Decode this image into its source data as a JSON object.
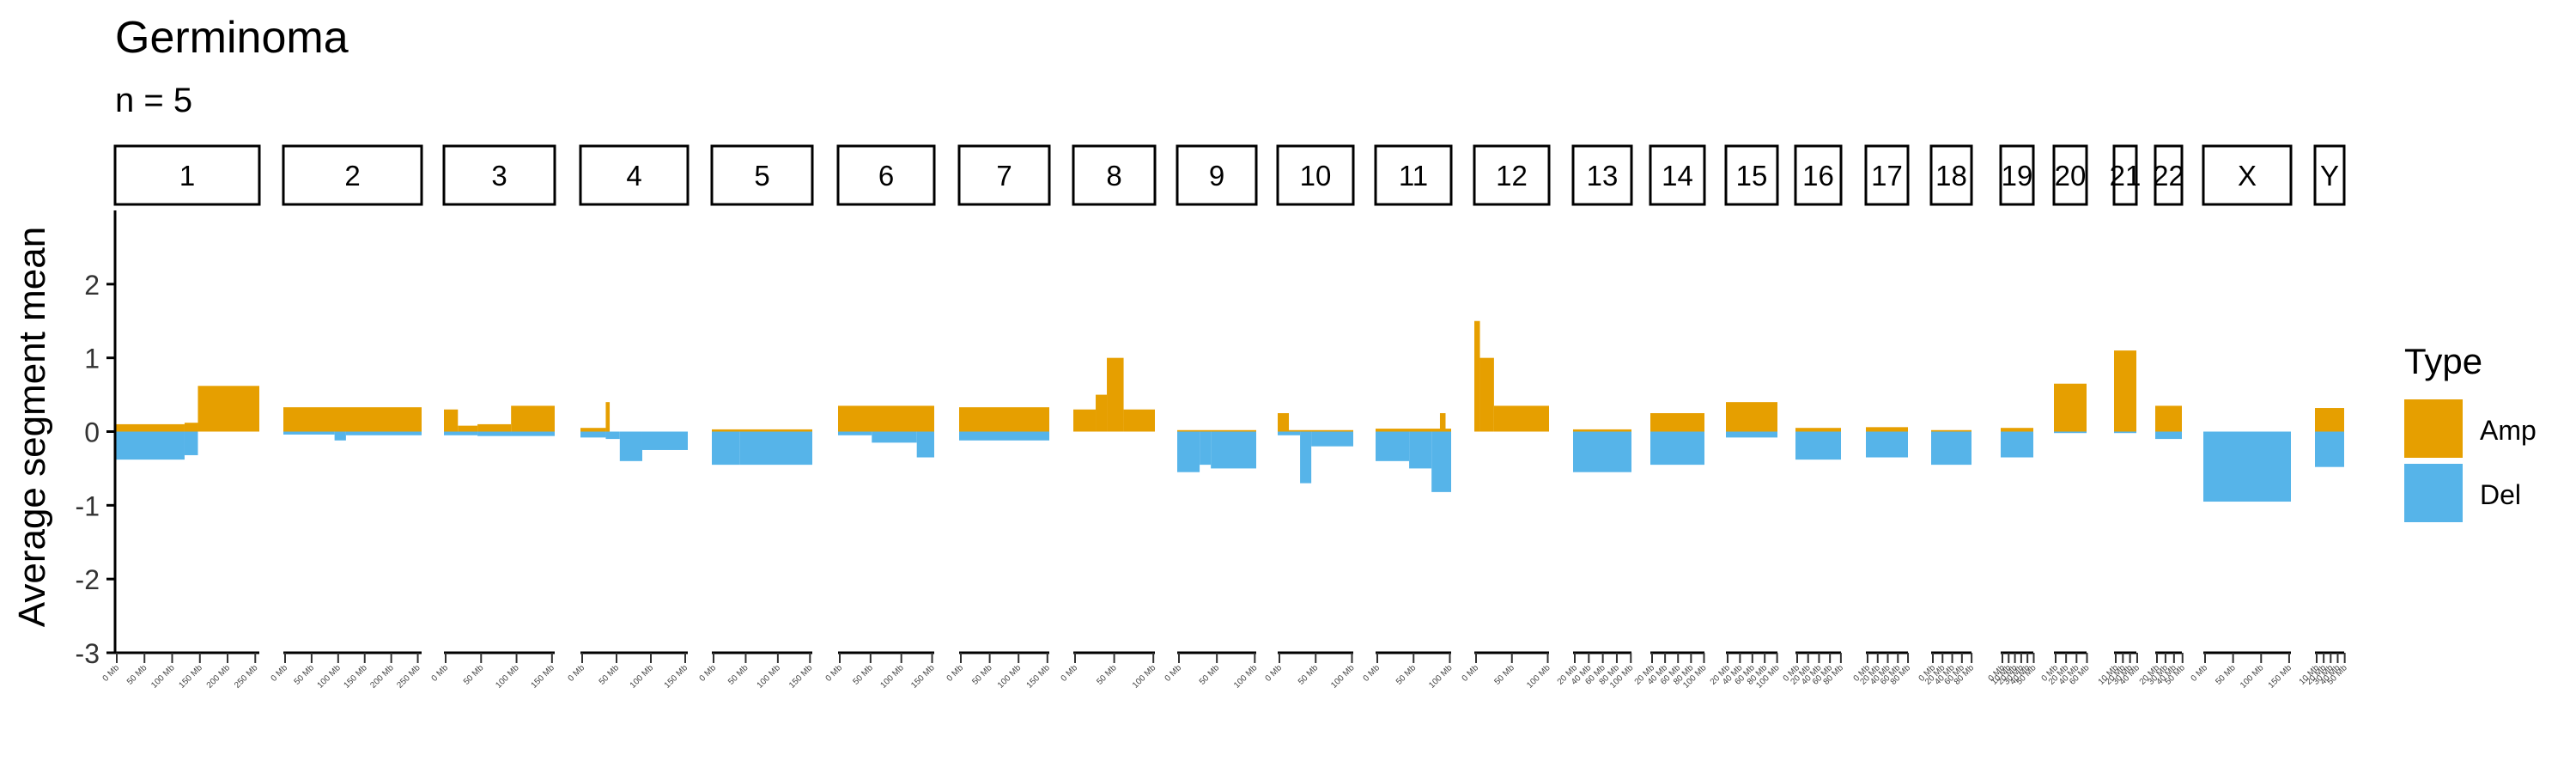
{
  "title": "Germinoma",
  "subtitle": "n = 5",
  "colors": {
    "amp": "#E69F00",
    "del": "#56B4E9"
  },
  "legend": {
    "title": "Type",
    "items": [
      {
        "label": "Amp",
        "color": "#E69F00"
      },
      {
        "label": "Del",
        "color": "#56B4E9"
      }
    ]
  },
  "chart_data": {
    "type": "area",
    "title": "Germinoma",
    "subtitle": "n = 5",
    "ylabel": "Average segment mean",
    "xlabel": "",
    "ylim": [
      -3,
      3
    ],
    "yticks": [
      2,
      1,
      0,
      -1,
      -2,
      -3
    ],
    "xtick_unit": "Mb",
    "grid": false,
    "legend_position": "right",
    "panels": [
      {
        "name": "1",
        "length_mb": 249,
        "ticks": [
          "0 Mb",
          "50 Mb",
          "100 Mb",
          "150 Mb",
          "200 Mb",
          "250 Mb"
        ],
        "amp": [
          [
            0,
            120,
            0.1
          ],
          [
            120,
            143,
            0.12
          ],
          [
            143,
            249,
            0.62
          ]
        ],
        "del": [
          [
            0,
            120,
            -0.38
          ],
          [
            120,
            143,
            -0.32
          ],
          [
            143,
            249,
            0
          ]
        ]
      },
      {
        "name": "2",
        "length_mb": 243,
        "ticks": [
          "0 Mb",
          "50 Mb",
          "100 Mb",
          "150 Mb",
          "200 Mb",
          "250 Mb"
        ],
        "amp": [
          [
            0,
            243,
            0.33
          ]
        ],
        "del": [
          [
            0,
            90,
            -0.04
          ],
          [
            90,
            110,
            -0.12
          ],
          [
            110,
            243,
            -0.05
          ]
        ]
      },
      {
        "name": "3",
        "length_mb": 198,
        "ticks": [
          "0 Mb",
          "50 Mb",
          "100 Mb",
          "150 Mb"
        ],
        "amp": [
          [
            0,
            25,
            0.3
          ],
          [
            25,
            60,
            0.08
          ],
          [
            60,
            120,
            0.1
          ],
          [
            120,
            198,
            0.35
          ]
        ],
        "del": [
          [
            0,
            60,
            -0.05
          ],
          [
            60,
            198,
            -0.06
          ]
        ]
      },
      {
        "name": "4",
        "length_mb": 191,
        "ticks": [
          "0 Mb",
          "50 Mb",
          "100 Mb",
          "150 Mb"
        ],
        "amp": [
          [
            0,
            45,
            0.05
          ],
          [
            45,
            52,
            0.4
          ],
          [
            52,
            191,
            0
          ]
        ],
        "del": [
          [
            0,
            45,
            -0.08
          ],
          [
            45,
            70,
            -0.1
          ],
          [
            70,
            110,
            -0.4
          ],
          [
            110,
            191,
            -0.25
          ]
        ]
      },
      {
        "name": "5",
        "length_mb": 181,
        "ticks": [
          "0 Mb",
          "50 Mb",
          "100 Mb",
          "150 Mb"
        ],
        "amp": [
          [
            0,
            181,
            0.03
          ]
        ],
        "del": [
          [
            0,
            50,
            -0.45
          ],
          [
            50,
            181,
            -0.45
          ]
        ]
      },
      {
        "name": "6",
        "length_mb": 171,
        "ticks": [
          "0 Mb",
          "50 Mb",
          "100 Mb",
          "150 Mb"
        ],
        "amp": [
          [
            0,
            171,
            0.35
          ]
        ],
        "del": [
          [
            0,
            60,
            -0.05
          ],
          [
            60,
            140,
            -0.15
          ],
          [
            140,
            171,
            -0.35
          ]
        ]
      },
      {
        "name": "7",
        "length_mb": 159,
        "ticks": [
          "0 Mb",
          "50 Mb",
          "100 Mb",
          "150 Mb"
        ],
        "amp": [
          [
            0,
            159,
            0.33
          ]
        ],
        "del": [
          [
            0,
            159,
            -0.12
          ]
        ]
      },
      {
        "name": "8",
        "length_mb": 146,
        "ticks": [
          "0 Mb",
          "50 Mb",
          "100 Mb"
        ],
        "amp": [
          [
            0,
            40,
            0.3
          ],
          [
            40,
            60,
            0.5
          ],
          [
            60,
            90,
            1.0
          ],
          [
            90,
            146,
            0.3
          ]
        ],
        "del": [
          [
            0,
            146,
            0
          ]
        ]
      },
      {
        "name": "9",
        "length_mb": 141,
        "ticks": [
          "0 Mb",
          "50 Mb",
          "100 Mb"
        ],
        "amp": [
          [
            0,
            141,
            0.02
          ]
        ],
        "del": [
          [
            0,
            40,
            -0.55
          ],
          [
            40,
            60,
            -0.45
          ],
          [
            60,
            141,
            -0.5
          ]
        ]
      },
      {
        "name": "10",
        "length_mb": 135,
        "ticks": [
          "0 Mb",
          "50 Mb",
          "100 Mb"
        ],
        "amp": [
          [
            0,
            20,
            0.25
          ],
          [
            20,
            135,
            0.02
          ]
        ],
        "del": [
          [
            0,
            40,
            -0.05
          ],
          [
            40,
            60,
            -0.7
          ],
          [
            60,
            135,
            -0.2
          ]
        ]
      },
      {
        "name": "11",
        "length_mb": 135,
        "ticks": [
          "0 Mb",
          "50 Mb",
          "100 Mb"
        ],
        "amp": [
          [
            0,
            135,
            0.04
          ],
          [
            115,
            125,
            0.25
          ]
        ],
        "del": [
          [
            0,
            60,
            -0.4
          ],
          [
            60,
            100,
            -0.5
          ],
          [
            100,
            135,
            -0.82
          ]
        ]
      },
      {
        "name": "12",
        "length_mb": 133,
        "ticks": [
          "0 Mb",
          "50 Mb",
          "100 Mb"
        ],
        "amp": [
          [
            0,
            10,
            1.5
          ],
          [
            10,
            35,
            1.0
          ],
          [
            35,
            133,
            0.35
          ]
        ],
        "del": [
          [
            0,
            133,
            0
          ]
        ]
      },
      {
        "name": "13",
        "length_mb": 115,
        "ticks": [
          "20 Mb",
          "40 Mb",
          "60 Mb",
          "80 Mb",
          "100 Mb"
        ],
        "amp": [
          [
            0,
            115,
            0.03
          ]
        ],
        "del": [
          [
            0,
            115,
            -0.55
          ]
        ]
      },
      {
        "name": "14",
        "length_mb": 107,
        "ticks": [
          "20 Mb",
          "40 Mb",
          "60 Mb",
          "80 Mb",
          "100 Mb"
        ],
        "amp": [
          [
            0,
            107,
            0.25
          ]
        ],
        "del": [
          [
            0,
            107,
            -0.45
          ]
        ]
      },
      {
        "name": "15",
        "length_mb": 102,
        "ticks": [
          "20 Mb",
          "40 Mb",
          "60 Mb",
          "80 Mb",
          "100 Mb"
        ],
        "amp": [
          [
            0,
            102,
            0.4
          ]
        ],
        "del": [
          [
            0,
            102,
            -0.08
          ]
        ]
      },
      {
        "name": "16",
        "length_mb": 90,
        "ticks": [
          "0 Mb",
          "20 Mb",
          "40 Mb",
          "60 Mb",
          "80 Mb"
        ],
        "amp": [
          [
            0,
            90,
            0.05
          ]
        ],
        "del": [
          [
            0,
            90,
            -0.38
          ]
        ]
      },
      {
        "name": "17",
        "length_mb": 81,
        "ticks": [
          "0 Mb",
          "20 Mb",
          "40 Mb",
          "60 Mb",
          "80 Mb"
        ],
        "amp": [
          [
            0,
            81,
            0.06
          ]
        ],
        "del": [
          [
            0,
            81,
            -0.35
          ]
        ]
      },
      {
        "name": "18",
        "length_mb": 78,
        "ticks": [
          "0 Mb",
          "20 Mb",
          "40 Mb",
          "60 Mb",
          "80 Mb"
        ],
        "amp": [
          [
            0,
            78,
            0.02
          ]
        ],
        "del": [
          [
            0,
            78,
            -0.45
          ]
        ]
      },
      {
        "name": "19",
        "length_mb": 59,
        "ticks": [
          "0 Mb",
          "10 Mb",
          "20 Mb",
          "30 Mb",
          "40 Mb",
          "50 Mb"
        ],
        "amp": [
          [
            0,
            59,
            0.05
          ]
        ],
        "del": [
          [
            0,
            59,
            -0.35
          ]
        ]
      },
      {
        "name": "20",
        "length_mb": 63,
        "ticks": [
          "0 Mb",
          "20 Mb",
          "40 Mb",
          "60 Mb"
        ],
        "amp": [
          [
            0,
            63,
            0.65
          ]
        ],
        "del": [
          [
            0,
            63,
            -0.02
          ]
        ]
      },
      {
        "name": "21",
        "length_mb": 48,
        "ticks": [
          "10 Mb",
          "20 Mb",
          "30 Mb",
          "40 Mb"
        ],
        "amp": [
          [
            0,
            48,
            1.1
          ]
        ],
        "del": [
          [
            0,
            48,
            -0.02
          ]
        ]
      },
      {
        "name": "22",
        "length_mb": 51,
        "ticks": [
          "20 Mb",
          "30 Mb",
          "40 Mb",
          "50 Mb"
        ],
        "amp": [
          [
            0,
            51,
            0.35
          ]
        ],
        "del": [
          [
            0,
            51,
            -0.1
          ]
        ]
      },
      {
        "name": "X",
        "length_mb": 155,
        "ticks": [
          "0 Mb",
          "50 Mb",
          "100 Mb",
          "150 Mb"
        ],
        "amp": [
          [
            0,
            155,
            0
          ]
        ],
        "del": [
          [
            0,
            155,
            -0.95
          ]
        ]
      },
      {
        "name": "Y",
        "length_mb": 57,
        "ticks": [
          "10 Mb",
          "20 Mb",
          "30 Mb",
          "40 Mb",
          "50 Mb"
        ],
        "amp": [
          [
            0,
            57,
            0.32
          ]
        ],
        "del": [
          [
            0,
            57,
            -0.48
          ]
        ]
      }
    ]
  }
}
